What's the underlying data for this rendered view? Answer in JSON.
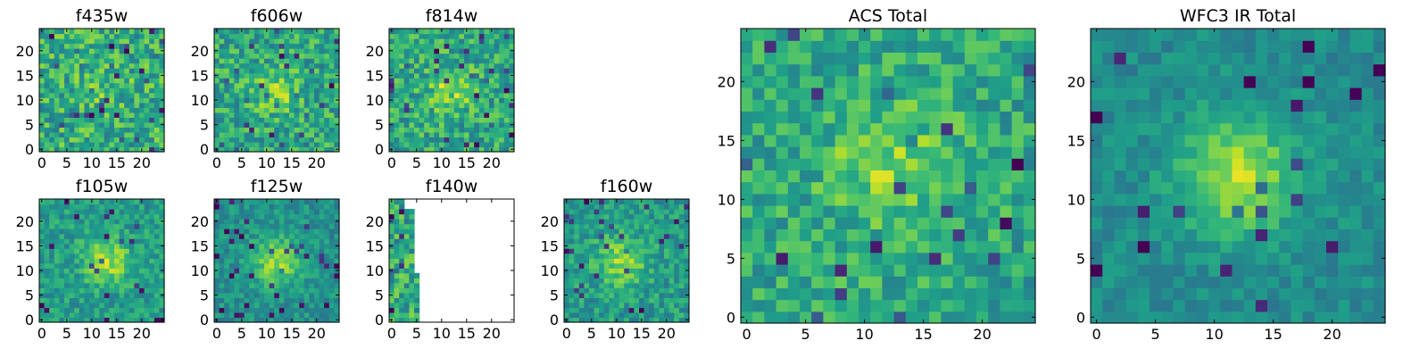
{
  "figure": {
    "colormap": "viridis",
    "background": "#ffffff"
  },
  "chart_data": [
    {
      "type": "heatmap",
      "title": "f435w",
      "grid_size": 25,
      "xlim": [
        0,
        24
      ],
      "ylim": [
        0,
        24
      ],
      "xticks": [
        0,
        5,
        10,
        15,
        20
      ],
      "yticks": [
        0,
        5,
        10,
        15,
        20
      ],
      "pattern": "noise",
      "seed": 11,
      "center": [
        12,
        12
      ],
      "peak": 0.08,
      "sigma": 4,
      "noise": 0.22,
      "mean": 0.62
    },
    {
      "type": "heatmap",
      "title": "f606w",
      "grid_size": 25,
      "xlim": [
        0,
        24
      ],
      "ylim": [
        0,
        24
      ],
      "xticks": [
        0,
        5,
        10,
        15,
        20
      ],
      "yticks": [
        0,
        5,
        10,
        15,
        20
      ],
      "pattern": "source",
      "seed": 23,
      "center": [
        12,
        12
      ],
      "peak": 0.22,
      "sigma": 3,
      "noise": 0.2,
      "mean": 0.6
    },
    {
      "type": "heatmap",
      "title": "f814w",
      "grid_size": 25,
      "xlim": [
        0,
        24
      ],
      "ylim": [
        0,
        24
      ],
      "xticks": [
        0,
        5,
        10,
        15,
        20
      ],
      "yticks": [
        0,
        5,
        10,
        15,
        20
      ],
      "pattern": "source",
      "seed": 37,
      "center": [
        12,
        12
      ],
      "peak": 0.25,
      "sigma": 3,
      "noise": 0.2,
      "mean": 0.6
    },
    {
      "type": "heatmap",
      "title": "f105w",
      "grid_size": 25,
      "xlim": [
        0,
        24
      ],
      "ylim": [
        0,
        24
      ],
      "xticks": [
        0,
        5,
        10,
        15,
        20
      ],
      "yticks": [
        0,
        5,
        10,
        15,
        20
      ],
      "pattern": "source",
      "seed": 41,
      "center": [
        13,
        12
      ],
      "peak": 0.32,
      "sigma": 3.2,
      "noise": 0.14,
      "mean": 0.55
    },
    {
      "type": "heatmap",
      "title": "f125w",
      "grid_size": 25,
      "xlim": [
        0,
        24
      ],
      "ylim": [
        0,
        24
      ],
      "xticks": [
        0,
        5,
        10,
        15,
        20
      ],
      "yticks": [
        0,
        5,
        10,
        15,
        20
      ],
      "pattern": "source",
      "seed": 53,
      "center": [
        12,
        12
      ],
      "peak": 0.35,
      "sigma": 3.5,
      "noise": 0.12,
      "mean": 0.5
    },
    {
      "type": "heatmap",
      "title": "f140w",
      "grid_size": 25,
      "xlim": [
        0,
        24
      ],
      "ylim": [
        0,
        24
      ],
      "xticks": [
        0,
        5,
        10,
        15,
        20
      ],
      "yticks": [
        0,
        5,
        10,
        15,
        20
      ],
      "pattern": "partial",
      "seed": 67,
      "center": [
        12,
        12
      ],
      "peak": 0.1,
      "sigma": 3,
      "noise": 0.22,
      "mean": 0.6
    },
    {
      "type": "heatmap",
      "title": "f160w",
      "grid_size": 25,
      "xlim": [
        0,
        24
      ],
      "ylim": [
        0,
        24
      ],
      "xticks": [
        0,
        5,
        10,
        15,
        20
      ],
      "yticks": [
        0,
        5,
        10,
        15,
        20
      ],
      "pattern": "source",
      "seed": 79,
      "center": [
        11,
        12
      ],
      "peak": 0.3,
      "sigma": 3.2,
      "noise": 0.15,
      "mean": 0.55
    },
    {
      "type": "heatmap",
      "title": "ACS Total",
      "grid_size": 25,
      "xlim": [
        0,
        24
      ],
      "ylim": [
        0,
        24
      ],
      "xticks": [
        0,
        5,
        10,
        15,
        20
      ],
      "yticks": [
        0,
        5,
        10,
        15,
        20
      ],
      "pattern": "source",
      "seed": 97,
      "center": [
        12,
        13
      ],
      "peak": 0.22,
      "sigma": 3.5,
      "noise": 0.17,
      "mean": 0.6
    },
    {
      "type": "heatmap",
      "title": "WFC3 IR Total",
      "grid_size": 25,
      "xlim": [
        0,
        24
      ],
      "ylim": [
        0,
        24
      ],
      "xticks": [
        0,
        5,
        10,
        15,
        20
      ],
      "yticks": [
        0,
        5,
        10,
        15,
        20
      ],
      "pattern": "source",
      "seed": 113,
      "center": [
        12,
        12
      ],
      "peak": 0.4,
      "sigma": 3.5,
      "noise": 0.09,
      "mean": 0.48
    }
  ]
}
